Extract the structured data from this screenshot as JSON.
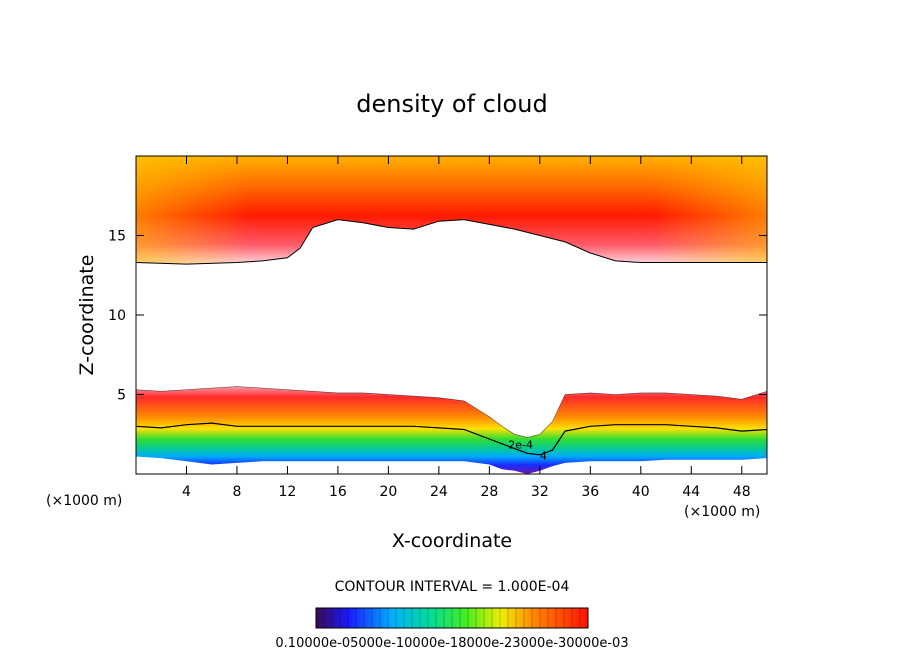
{
  "chart_data": {
    "type": "heatmap",
    "title": "density of cloud",
    "xlabel": "X-coordinate",
    "ylabel": "Z-coordinate",
    "x_unit": "(×1000 m)",
    "x_unit_right": "(×1000 m)",
    "xlim": [
      0,
      50
    ],
    "ylim": [
      0,
      20
    ],
    "xticks": [
      4,
      8,
      12,
      16,
      20,
      24,
      28,
      32,
      36,
      40,
      44,
      48
    ],
    "yticks": [
      5,
      10,
      15
    ],
    "grid": false,
    "contour_interval_text": "CONTOUR INTERVAL = 1.000E-04",
    "colorbar": {
      "min": 0.0001,
      "max": 0.0003,
      "label_text": "0.10000e-05000e-10000e-18000e-23000e-30000e-03"
    },
    "contour_labels": [
      "2e-4",
      "4"
    ],
    "upper_cloud_layer": {
      "x": [
        0,
        4,
        8,
        10,
        12,
        13,
        14,
        16,
        18,
        20,
        22,
        24,
        26,
        28,
        30,
        32,
        34,
        36,
        38,
        40,
        42,
        44,
        46,
        48,
        50
      ],
      "base_z": [
        13.3,
        13.2,
        13.3,
        13.4,
        13.6,
        14.2,
        15.5,
        16.0,
        15.8,
        15.5,
        15.4,
        15.9,
        16.0,
        15.7,
        15.4,
        15.0,
        14.6,
        13.9,
        13.4,
        13.3,
        13.3,
        13.3,
        13.3,
        13.3,
        13.3
      ],
      "top_z": 20
    },
    "lower_cloud_layer": {
      "x": [
        0,
        2,
        4,
        6,
        8,
        10,
        12,
        14,
        16,
        18,
        20,
        22,
        24,
        26,
        28,
        29,
        30,
        31,
        32,
        33,
        34,
        36,
        38,
        40,
        42,
        44,
        46,
        48,
        50
      ],
      "top_z": [
        5.3,
        5.2,
        5.3,
        5.4,
        5.5,
        5.4,
        5.3,
        5.2,
        5.1,
        5.1,
        5.0,
        4.9,
        4.8,
        4.6,
        3.6,
        3.0,
        2.5,
        2.3,
        2.5,
        3.3,
        5.0,
        5.1,
        5.0,
        5.1,
        5.1,
        5.0,
        4.9,
        4.7,
        5.2
      ],
      "base_z": [
        1.1,
        1.0,
        0.8,
        0.6,
        0.7,
        0.8,
        0.8,
        0.8,
        0.8,
        0.8,
        0.8,
        0.8,
        0.8,
        0.8,
        0.6,
        0.3,
        0.2,
        0.0,
        0.2,
        0.5,
        0.7,
        0.8,
        0.8,
        0.8,
        0.9,
        0.9,
        0.9,
        0.9,
        1.0
      ],
      "contour_2e4_z": [
        3.0,
        2.9,
        3.1,
        3.2,
        3.0,
        3.0,
        3.0,
        3.0,
        3.0,
        3.0,
        3.0,
        3.0,
        2.9,
        2.8,
        2.2,
        1.9,
        1.6,
        1.3,
        1.2,
        1.5,
        2.7,
        3.0,
        3.1,
        3.1,
        3.1,
        3.0,
        2.9,
        2.7,
        2.8
      ]
    }
  }
}
